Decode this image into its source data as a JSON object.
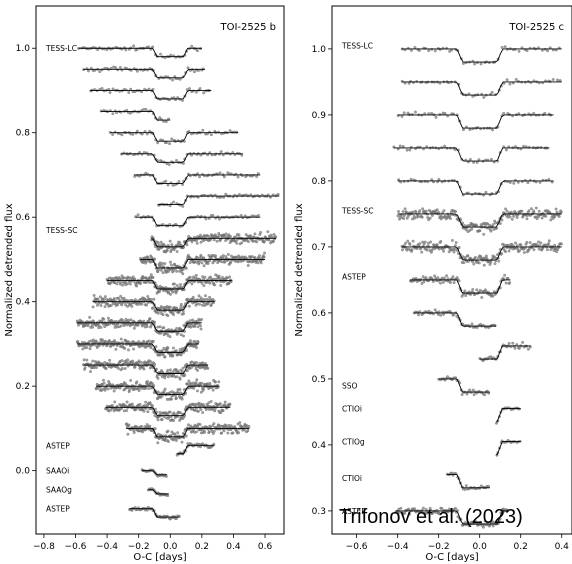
{
  "chart_data": [
    {
      "type": "scatter",
      "panel_title": "TOI-2525 b",
      "xlabel": "O-C [days]",
      "ylabel": "Normalized detrended flux",
      "xlim": [
        -0.85,
        0.72
      ],
      "ylim": [
        -0.15,
        1.1
      ],
      "xticks": [
        -0.8,
        -0.6,
        -0.4,
        -0.2,
        0.0,
        0.2,
        0.4,
        0.6
      ],
      "xtick_labels": [
        "−0.8",
        "−0.6",
        "−0.4",
        "−0.2",
        "0.0",
        "0.2",
        "0.4",
        "0.6"
      ],
      "yticks": [
        0.0,
        0.2,
        0.4,
        0.6,
        0.8,
        1.0
      ],
      "ytick_labels": [
        "0.0",
        "0.2",
        "0.4",
        "0.6",
        "0.8",
        "1.0"
      ],
      "grid": false,
      "labels": [
        {
          "text": "TESS-LC",
          "y": 1.0
        },
        {
          "text": "TESS-SC",
          "y": 0.57
        },
        {
          "text": "ASTEP",
          "y": 0.06
        },
        {
          "text": "SAAOi",
          "y": 0.0
        },
        {
          "text": "SAAOg",
          "y": -0.045
        },
        {
          "text": "ASTEP",
          "y": -0.09
        }
      ],
      "series": [
        {
          "instrument": "TESS-LC",
          "baseline": 1.0,
          "x_range": [
            -0.58,
            0.2
          ],
          "depth": 0.02,
          "noise": 0.004,
          "density": 1
        },
        {
          "instrument": "TESS-LC",
          "baseline": 0.95,
          "x_range": [
            -0.55,
            0.22
          ],
          "depth": 0.02,
          "noise": 0.004,
          "density": 1
        },
        {
          "instrument": "TESS-LC",
          "baseline": 0.9,
          "x_range": [
            -0.51,
            0.26
          ],
          "depth": 0.02,
          "noise": 0.004,
          "density": 1
        },
        {
          "instrument": "TESS-LC",
          "baseline": 0.85,
          "x_range": [
            -0.44,
            0.0
          ],
          "depth": 0.02,
          "noise": 0.004,
          "density": 1
        },
        {
          "instrument": "TESS-LC",
          "baseline": 0.8,
          "x_range": [
            -0.38,
            0.43
          ],
          "depth": 0.02,
          "noise": 0.004,
          "density": 1
        },
        {
          "instrument": "TESS-LC",
          "baseline": 0.75,
          "x_range": [
            -0.31,
            0.46
          ],
          "depth": 0.02,
          "noise": 0.004,
          "density": 1
        },
        {
          "instrument": "TESS-LC",
          "baseline": 0.7,
          "x_range": [
            -0.23,
            0.57
          ],
          "depth": 0.02,
          "noise": 0.004,
          "density": 1
        },
        {
          "instrument": "TESS-LC",
          "baseline": 0.65,
          "x_range": [
            -0.08,
            0.69
          ],
          "depth": 0.02,
          "noise": 0.004,
          "density": 1
        },
        {
          "instrument": "TESS-LC",
          "baseline": 0.6,
          "x_range": [
            -0.22,
            0.57
          ],
          "depth": 0.02,
          "noise": 0.004,
          "density": 1
        },
        {
          "instrument": "TESS-SC",
          "baseline": 0.55,
          "x_range": [
            -0.12,
            0.67
          ],
          "depth": 0.02,
          "noise": 0.01,
          "density": 4
        },
        {
          "instrument": "TESS-SC",
          "baseline": 0.5,
          "x_range": [
            -0.19,
            0.6
          ],
          "depth": 0.02,
          "noise": 0.01,
          "density": 4
        },
        {
          "instrument": "TESS-SC",
          "baseline": 0.45,
          "x_range": [
            -0.4,
            0.39
          ],
          "depth": 0.02,
          "noise": 0.01,
          "density": 4
        },
        {
          "instrument": "TESS-SC",
          "baseline": 0.4,
          "x_range": [
            -0.49,
            0.28
          ],
          "depth": 0.02,
          "noise": 0.01,
          "density": 4
        },
        {
          "instrument": "TESS-SC",
          "baseline": 0.35,
          "x_range": [
            -0.59,
            0.2
          ],
          "depth": 0.02,
          "noise": 0.01,
          "density": 4
        },
        {
          "instrument": "TESS-SC",
          "baseline": 0.3,
          "x_range": [
            -0.59,
            0.18
          ],
          "depth": 0.02,
          "noise": 0.01,
          "density": 4
        },
        {
          "instrument": "TESS-SC",
          "baseline": 0.25,
          "x_range": [
            -0.55,
            0.24
          ],
          "depth": 0.02,
          "noise": 0.01,
          "density": 4
        },
        {
          "instrument": "TESS-SC",
          "baseline": 0.2,
          "x_range": [
            -0.47,
            0.31
          ],
          "depth": 0.02,
          "noise": 0.01,
          "density": 4
        },
        {
          "instrument": "TESS-SC",
          "baseline": 0.15,
          "x_range": [
            -0.41,
            0.38
          ],
          "depth": 0.02,
          "noise": 0.01,
          "density": 4
        },
        {
          "instrument": "TESS-SC",
          "baseline": 0.1,
          "x_range": [
            -0.28,
            0.5
          ],
          "depth": 0.02,
          "noise": 0.01,
          "density": 4
        },
        {
          "instrument": "ASTEP",
          "baseline": 0.06,
          "x_range": [
            0.04,
            0.28
          ],
          "depth": 0.02,
          "noise": 0.004,
          "density": 2
        },
        {
          "instrument": "SAAOi",
          "baseline": 0.0,
          "x_range": [
            -0.18,
            -0.02
          ],
          "depth": 0.01,
          "noise": 0.003,
          "density": 2
        },
        {
          "instrument": "SAAOg",
          "baseline": -0.045,
          "x_range": [
            -0.14,
            -0.01
          ],
          "depth": 0.01,
          "noise": 0.003,
          "density": 2
        },
        {
          "instrument": "ASTEP",
          "baseline": -0.09,
          "x_range": [
            -0.26,
            0.06
          ],
          "depth": 0.02,
          "noise": 0.004,
          "density": 2
        }
      ]
    },
    {
      "type": "scatter",
      "panel_title": "TOI-2525 c",
      "xlabel": "O-C [days]",
      "ylabel": "Normalized detrended flux",
      "xlim": [
        -0.72,
        0.45
      ],
      "ylim": [
        0.265,
        1.065
      ],
      "xticks": [
        -0.6,
        -0.4,
        -0.2,
        0.0,
        0.2,
        0.4
      ],
      "xtick_labels": [
        "−0.6",
        "−0.4",
        "−0.2",
        "0.0",
        "0.2",
        "0.4"
      ],
      "yticks": [
        0.3,
        0.4,
        0.5,
        0.6,
        0.7,
        0.8,
        0.9,
        1.0
      ],
      "ytick_labels": [
        "0.3",
        "0.4",
        "0.5",
        "0.6",
        "0.7",
        "0.8",
        "0.9",
        "1.0"
      ],
      "grid": false,
      "labels": [
        {
          "text": "TESS-LC",
          "y": 1.005
        },
        {
          "text": "TESS-SC",
          "y": 0.755
        },
        {
          "text": "ASTEP",
          "y": 0.655
        },
        {
          "text": "SSO",
          "y": 0.49
        },
        {
          "text": "CTIOi",
          "y": 0.455
        },
        {
          "text": "CTIOg",
          "y": 0.405
        },
        {
          "text": "CTIOi",
          "y": 0.35
        },
        {
          "text": "ASTEP",
          "y": 0.3
        }
      ],
      "series": [
        {
          "instrument": "TESS-LC",
          "baseline": 1.0,
          "x_range": [
            -0.38,
            0.4
          ],
          "depth": 0.02,
          "noise": 0.003,
          "density": 1
        },
        {
          "instrument": "TESS-LC",
          "baseline": 0.95,
          "x_range": [
            -0.38,
            0.4
          ],
          "depth": 0.02,
          "noise": 0.003,
          "density": 1
        },
        {
          "instrument": "TESS-LC",
          "baseline": 0.9,
          "x_range": [
            -0.4,
            0.36
          ],
          "depth": 0.02,
          "noise": 0.003,
          "density": 1
        },
        {
          "instrument": "TESS-LC",
          "baseline": 0.85,
          "x_range": [
            -0.42,
            0.34
          ],
          "depth": 0.02,
          "noise": 0.003,
          "density": 1
        },
        {
          "instrument": "TESS-LC",
          "baseline": 0.8,
          "x_range": [
            -0.4,
            0.36
          ],
          "depth": 0.02,
          "noise": 0.003,
          "density": 1
        },
        {
          "instrument": "TESS-SC",
          "baseline": 0.75,
          "x_range": [
            -0.4,
            0.4
          ],
          "depth": 0.02,
          "noise": 0.007,
          "density": 4
        },
        {
          "instrument": "TESS-SC",
          "baseline": 0.7,
          "x_range": [
            -0.38,
            0.4
          ],
          "depth": 0.02,
          "noise": 0.007,
          "density": 4
        },
        {
          "instrument": "ASTEP",
          "baseline": 0.65,
          "x_range": [
            -0.34,
            0.15
          ],
          "depth": 0.02,
          "noise": 0.005,
          "density": 3
        },
        {
          "instrument": "ASTEP",
          "baseline": 0.6,
          "x_range": [
            -0.32,
            0.08
          ],
          "depth": 0.02,
          "noise": 0.004,
          "density": 2
        },
        {
          "instrument": "ASTEP",
          "baseline": 0.55,
          "x_range": [
            0.0,
            0.25
          ],
          "depth": 0.02,
          "noise": 0.004,
          "density": 2
        },
        {
          "instrument": "SSO",
          "baseline": 0.5,
          "x_range": [
            -0.2,
            0.05
          ],
          "depth": 0.02,
          "noise": 0.004,
          "density": 2
        },
        {
          "instrument": "CTIOi",
          "baseline": 0.455,
          "x_range": [
            0.08,
            0.2
          ],
          "depth": 0.02,
          "noise": 0.002,
          "density": 2
        },
        {
          "instrument": "CTIOg",
          "baseline": 0.405,
          "x_range": [
            0.08,
            0.2
          ],
          "depth": 0.02,
          "noise": 0.002,
          "density": 2
        },
        {
          "instrument": "CTIOi",
          "baseline": 0.355,
          "x_range": [
            -0.16,
            0.05
          ],
          "depth": 0.02,
          "noise": 0.002,
          "density": 2
        },
        {
          "instrument": "ASTEP",
          "baseline": 0.3,
          "x_range": [
            -0.41,
            0.14
          ],
          "depth": 0.02,
          "noise": 0.004,
          "density": 3
        }
      ]
    }
  ],
  "credit": "Trifonov et al. (2023)",
  "colors": {
    "points": "#7f7f7f",
    "model": "#000000",
    "axes": "#000000"
  }
}
